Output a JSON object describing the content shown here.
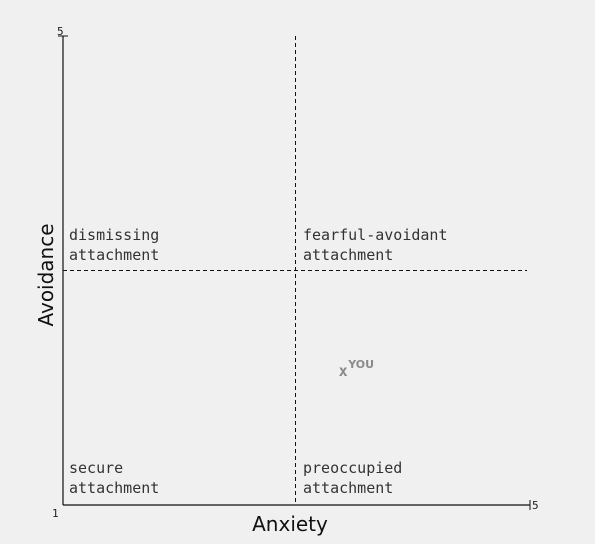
{
  "chart_data": {
    "type": "scatter",
    "xlabel": "Anxiety",
    "ylabel": "Avoidance",
    "xlim": [
      1,
      5
    ],
    "ylim": [
      1,
      5
    ],
    "x_ticks": [
      "1",
      "5"
    ],
    "y_ticks": [
      "5"
    ],
    "divider_x": 3,
    "divider_y": 3,
    "grid": false,
    "quadrants": [
      {
        "id": "dismissing",
        "lines": [
          "dismissing",
          "attachment"
        ]
      },
      {
        "id": "fearful",
        "lines": [
          "fearful-avoidant",
          "attachment"
        ]
      },
      {
        "id": "secure",
        "lines": [
          "secure",
          "attachment"
        ]
      },
      {
        "id": "preoccupied",
        "lines": [
          "preoccupied",
          "attachment"
        ]
      }
    ],
    "points": [
      {
        "x": 3.4,
        "y": 2.1,
        "symbol": "x",
        "label": "YOU"
      }
    ]
  },
  "colors": {
    "background": "#f0f0f0",
    "axis": "#111111",
    "marker": "#8a8a8a"
  }
}
